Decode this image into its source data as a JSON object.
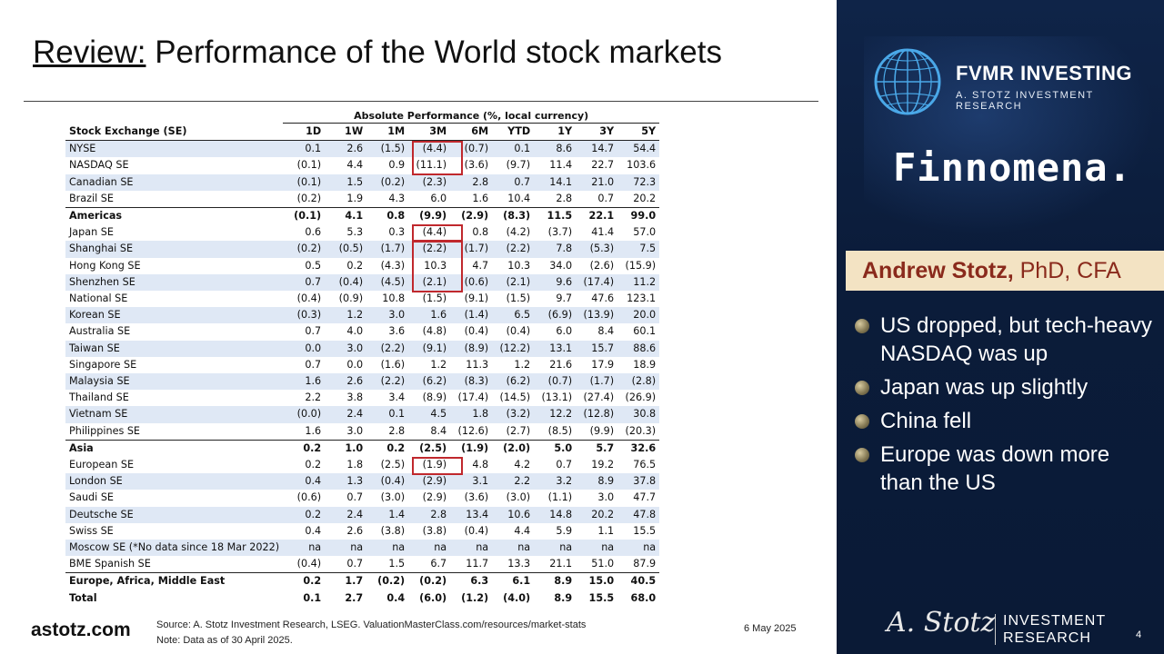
{
  "title": {
    "prefix": "Review:",
    "rest": " Performance of the World stock markets"
  },
  "table": {
    "group_header": "Absolute Performance (%, local currency)",
    "col_name": "Stock Exchange (SE)",
    "columns": [
      "1D",
      "1W",
      "1M",
      "3M",
      "6M",
      "YTD",
      "1Y",
      "3Y",
      "5Y"
    ],
    "rows": [
      {
        "name": "NYSE",
        "vals": [
          "0.1",
          "2.6",
          "(1.5)",
          "(4.4)",
          "(0.7)",
          "0.1",
          "8.6",
          "14.7",
          "54.4"
        ],
        "style": "shade"
      },
      {
        "name": "NASDAQ SE",
        "vals": [
          "(0.1)",
          "4.4",
          "0.9",
          "(11.1)",
          "(3.6)",
          "(9.7)",
          "11.4",
          "22.7",
          "103.6"
        ],
        "style": ""
      },
      {
        "name": "Canadian SE",
        "vals": [
          "(0.1)",
          "1.5",
          "(0.2)",
          "(2.3)",
          "2.8",
          "0.7",
          "14.1",
          "21.0",
          "72.3"
        ],
        "style": "shade"
      },
      {
        "name": "Brazil SE",
        "vals": [
          "(0.2)",
          "1.9",
          "4.3",
          "6.0",
          "1.6",
          "10.4",
          "2.8",
          "0.7",
          "20.2"
        ],
        "style": ""
      },
      {
        "name": "Americas",
        "vals": [
          "(0.1)",
          "4.1",
          "0.8",
          "(9.9)",
          "(2.9)",
          "(8.3)",
          "11.5",
          "22.1",
          "99.0"
        ],
        "style": "sub"
      },
      {
        "name": "Japan SE",
        "vals": [
          "0.6",
          "5.3",
          "0.3",
          "(4.4)",
          "0.8",
          "(4.2)",
          "(3.7)",
          "41.4",
          "57.0"
        ],
        "style": ""
      },
      {
        "name": "Shanghai SE",
        "vals": [
          "(0.2)",
          "(0.5)",
          "(1.7)",
          "(2.2)",
          "(1.7)",
          "(2.2)",
          "7.8",
          "(5.3)",
          "7.5"
        ],
        "style": "shade"
      },
      {
        "name": "Hong Kong SE",
        "vals": [
          "0.5",
          "0.2",
          "(4.3)",
          "10.3",
          "4.7",
          "10.3",
          "34.0",
          "(2.6)",
          "(15.9)"
        ],
        "style": ""
      },
      {
        "name": "Shenzhen SE",
        "vals": [
          "0.7",
          "(0.4)",
          "(4.5)",
          "(2.1)",
          "(0.6)",
          "(2.1)",
          "9.6",
          "(17.4)",
          "11.2"
        ],
        "style": "shade"
      },
      {
        "name": "National SE",
        "vals": [
          "(0.4)",
          "(0.9)",
          "10.8",
          "(1.5)",
          "(9.1)",
          "(1.5)",
          "9.7",
          "47.6",
          "123.1"
        ],
        "style": ""
      },
      {
        "name": "Korean SE",
        "vals": [
          "(0.3)",
          "1.2",
          "3.0",
          "1.6",
          "(1.4)",
          "6.5",
          "(6.9)",
          "(13.9)",
          "20.0"
        ],
        "style": "shade"
      },
      {
        "name": "Australia SE",
        "vals": [
          "0.7",
          "4.0",
          "3.6",
          "(4.8)",
          "(0.4)",
          "(0.4)",
          "6.0",
          "8.4",
          "60.1"
        ],
        "style": ""
      },
      {
        "name": "Taiwan SE",
        "vals": [
          "0.0",
          "3.0",
          "(2.2)",
          "(9.1)",
          "(8.9)",
          "(12.2)",
          "13.1",
          "15.7",
          "88.6"
        ],
        "style": "shade"
      },
      {
        "name": "Singapore SE",
        "vals": [
          "0.7",
          "0.0",
          "(1.6)",
          "1.2",
          "11.3",
          "1.2",
          "21.6",
          "17.9",
          "18.9"
        ],
        "style": ""
      },
      {
        "name": "Malaysia SE",
        "vals": [
          "1.6",
          "2.6",
          "(2.2)",
          "(6.2)",
          "(8.3)",
          "(6.2)",
          "(0.7)",
          "(1.7)",
          "(2.8)"
        ],
        "style": "shade"
      },
      {
        "name": "Thailand SE",
        "vals": [
          "2.2",
          "3.8",
          "3.4",
          "(8.9)",
          "(17.4)",
          "(14.5)",
          "(13.1)",
          "(27.4)",
          "(26.9)"
        ],
        "style": ""
      },
      {
        "name": "Vietnam SE",
        "vals": [
          "(0.0)",
          "2.4",
          "0.1",
          "4.5",
          "1.8",
          "(3.2)",
          "12.2",
          "(12.8)",
          "30.8"
        ],
        "style": "shade"
      },
      {
        "name": "Philippines SE",
        "vals": [
          "1.6",
          "3.0",
          "2.8",
          "8.4",
          "(12.6)",
          "(2.7)",
          "(8.5)",
          "(9.9)",
          "(20.3)"
        ],
        "style": ""
      },
      {
        "name": "Asia",
        "vals": [
          "0.2",
          "1.0",
          "0.2",
          "(2.5)",
          "(1.9)",
          "(2.0)",
          "5.0",
          "5.7",
          "32.6"
        ],
        "style": "sub"
      },
      {
        "name": "European SE",
        "vals": [
          "0.2",
          "1.8",
          "(2.5)",
          "(1.9)",
          "4.8",
          "4.2",
          "0.7",
          "19.2",
          "76.5"
        ],
        "style": ""
      },
      {
        "name": "London SE",
        "vals": [
          "0.4",
          "1.3",
          "(0.4)",
          "(2.9)",
          "3.1",
          "2.2",
          "3.2",
          "8.9",
          "37.8"
        ],
        "style": "shade"
      },
      {
        "name": "Saudi SE",
        "vals": [
          "(0.6)",
          "0.7",
          "(3.0)",
          "(2.9)",
          "(3.6)",
          "(3.0)",
          "(1.1)",
          "3.0",
          "47.7"
        ],
        "style": ""
      },
      {
        "name": "Deutsche SE",
        "vals": [
          "0.2",
          "2.4",
          "1.4",
          "2.8",
          "13.4",
          "10.6",
          "14.8",
          "20.2",
          "47.8"
        ],
        "style": "shade"
      },
      {
        "name": "Swiss SE",
        "vals": [
          "0.4",
          "2.6",
          "(3.8)",
          "(3.8)",
          "(0.4)",
          "4.4",
          "5.9",
          "1.1",
          "15.5"
        ],
        "style": ""
      },
      {
        "name": "Moscow SE (*No data since 18 Mar 2022)",
        "vals": [
          "na",
          "na",
          "na",
          "na",
          "na",
          "na",
          "na",
          "na",
          "na"
        ],
        "style": "shade"
      },
      {
        "name": "BME Spanish SE",
        "vals": [
          "(0.4)",
          "0.7",
          "1.5",
          "6.7",
          "11.7",
          "13.3",
          "21.1",
          "51.0",
          "87.9"
        ],
        "style": ""
      },
      {
        "name": "Europe, Africa, Middle East",
        "vals": [
          "0.2",
          "1.7",
          "(0.2)",
          "(0.2)",
          "6.3",
          "6.1",
          "8.9",
          "15.0",
          "40.5"
        ],
        "style": "sub"
      },
      {
        "name": "Total",
        "vals": [
          "0.1",
          "2.7",
          "0.4",
          "(6.0)",
          "(1.2)",
          "(4.0)",
          "8.9",
          "15.5",
          "68.0"
        ],
        "style": "total"
      }
    ]
  },
  "footer": {
    "brand": "astotz.com",
    "source": "Source: A. Stotz Investment Research, LSEG. ValuationMasterClass.com/resources/market-stats",
    "note": "Note: Data as of 30 April 2025.",
    "date": "6 May 2025"
  },
  "panel": {
    "fvmr_title": "FVMR INVESTING",
    "fvmr_sub": "A. STOTZ INVESTMENT RESEARCH",
    "finnomena": "Finnomena.",
    "presenter_name": "Andrew Stotz,",
    "presenter_title": " PhD, CFA",
    "bullets": [
      "US dropped, but tech-heavy NASDAQ was up",
      "Japan was up slightly",
      "China fell",
      "Europe was down more than the US"
    ],
    "signature": "A. Stotz",
    "investment": "INVESTMENT",
    "research": "RESEARCH",
    "page_number": "4"
  },
  "colors": {
    "panel_bg": "#0b1c3a",
    "highlight_border": "#c0282d",
    "row_shade": "#dfe8f5",
    "presenter_bg": "#f3e3c3",
    "presenter_text": "#8a2a1c"
  }
}
